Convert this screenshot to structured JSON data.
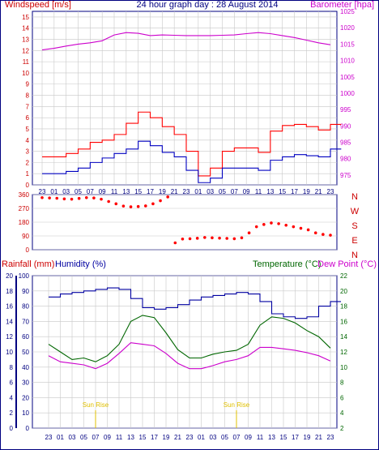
{
  "header": {
    "left_label": "Windspeed [m/s]",
    "title": "24 hour graph day : 28 August 2014",
    "right_label": "Barometer [hpa]"
  },
  "bottom_header": {
    "rain_label": "Rainfall (mm)",
    "humidity_label": "Humidity (%)",
    "temp_label": "Temperature (°C)",
    "dew_label": "Dew Point (°C)"
  },
  "colors": {
    "wind_max": "#ff0000",
    "wind_avg": "#0000c0",
    "barometer": "#cc00cc",
    "direction": "#ff0000",
    "rain": "#cc0000",
    "humidity": "#0000a0",
    "temperature": "#006600",
    "dewpoint": "#cc00cc",
    "sunrise": "#e0c000",
    "axis": "#000080",
    "grid": "#c8c8c8"
  },
  "chart_data": [
    {
      "type": "line",
      "name": "wind-barometer",
      "x_ticks": [
        "23",
        "01",
        "03",
        "05",
        "07",
        "09",
        "11",
        "13",
        "15",
        "17",
        "19",
        "21",
        "23",
        "01",
        "03",
        "05",
        "07",
        "09",
        "11",
        "13",
        "15",
        "17",
        "19",
        "21",
        "23"
      ],
      "left_axis": {
        "label": "Windspeed [m/s]",
        "ylim": [
          0,
          15.5
        ],
        "ticks": [
          0,
          1,
          2,
          3,
          4,
          5,
          6,
          7,
          8,
          9,
          10,
          11,
          12,
          13,
          14,
          15
        ]
      },
      "right_axis": {
        "label": "Barometer [hpa]",
        "ylim": [
          972,
          1025
        ],
        "ticks": [
          975,
          980,
          985,
          990,
          995,
          1000,
          1005,
          1010,
          1015,
          1020,
          1025
        ]
      },
      "series": [
        {
          "name": "Barometer",
          "axis": "right",
          "values": [
            1013.2,
            1013.7,
            1014.4,
            1015,
            1015.4,
            1016,
            1017.8,
            1018.5,
            1018.3,
            1017.6,
            1017.8,
            1017.7,
            1017.6,
            1017.6,
            1017.6,
            1017.7,
            1017.8,
            1018.2,
            1018.5,
            1018.2,
            1017.6,
            1017.0,
            1016.2,
            1015.4,
            1014.8
          ]
        },
        {
          "name": "Wind gust",
          "axis": "left",
          "values": [
            2.5,
            2.5,
            2.8,
            3.2,
            3.8,
            4.0,
            4.5,
            5.5,
            6.5,
            6.0,
            5.2,
            4.5,
            3.0,
            0.8,
            1.5,
            3.0,
            3.3,
            3.3,
            2.9,
            4.8,
            5.3,
            5.4,
            5.2,
            4.9,
            5.4
          ]
        },
        {
          "name": "Wind speed",
          "axis": "left",
          "values": [
            1.0,
            1.0,
            1.2,
            1.5,
            2.0,
            2.4,
            2.8,
            3.2,
            3.9,
            3.5,
            2.9,
            2.5,
            1.3,
            0.2,
            0.6,
            1.5,
            1.5,
            1.5,
            1.3,
            2.2,
            2.5,
            2.7,
            2.6,
            2.5,
            3.2
          ]
        }
      ]
    },
    {
      "type": "scatter",
      "name": "wind-direction",
      "x_ticks": [],
      "left_axis": {
        "ylim": [
          0,
          360
        ],
        "ticks": [
          0,
          90,
          180,
          270,
          360
        ]
      },
      "right_axis": {
        "ticks": [
          "N",
          "W",
          "S",
          "E",
          "N"
        ]
      },
      "series": [
        {
          "name": "Wind direction",
          "values": [
            340,
            338,
            336,
            332,
            330,
            335,
            340,
            338,
            330,
            315,
            300,
            285,
            280,
            282,
            286,
            300,
            320,
            345,
            45,
            70,
            72,
            75,
            80,
            78,
            76,
            74,
            72,
            78,
            110,
            150,
            165,
            175,
            170,
            160,
            150,
            140,
            130,
            110,
            100,
            95
          ]
        }
      ]
    },
    {
      "type": "line",
      "name": "temperature-humidity",
      "x_ticks": [
        "23",
        "01",
        "03",
        "05",
        "07",
        "09",
        "11",
        "13",
        "15",
        "17",
        "19",
        "21",
        "23",
        "01",
        "03",
        "05",
        "07",
        "09",
        "11",
        "13",
        "15",
        "17",
        "19",
        "21",
        "23"
      ],
      "left_axis": {
        "label": "Humidity (%)",
        "ylim": [
          0,
          100
        ],
        "ticks": [
          0,
          10,
          20,
          30,
          40,
          50,
          60,
          70,
          80,
          90,
          100
        ]
      },
      "left_outer_axis": {
        "label": "Rainfall (mm)",
        "ticks": [
          0,
          2,
          4,
          6,
          8,
          10,
          12,
          14,
          16,
          18,
          20
        ]
      },
      "right_axis": {
        "label": "Temperature (°C)",
        "ylim": [
          2,
          22
        ],
        "ticks": [
          2,
          4,
          6,
          8,
          10,
          12,
          14,
          16,
          18,
          20,
          22
        ]
      },
      "annotations": [
        "Sun Rise",
        "Sun Rise"
      ],
      "series": [
        {
          "name": "Humidity",
          "axis": "left",
          "values": [
            86,
            88,
            89,
            90,
            91,
            92,
            91,
            85,
            79,
            78,
            79,
            81,
            84,
            86,
            87,
            88,
            89,
            88,
            83,
            75,
            73,
            72,
            73,
            80,
            83
          ]
        },
        {
          "name": "Temperature",
          "axis": "right",
          "values": [
            13,
            12,
            11,
            11.2,
            10.7,
            11.5,
            13,
            16,
            16.8,
            16.5,
            14.5,
            12.3,
            11.2,
            11.2,
            11.7,
            12.0,
            12.2,
            13.0,
            15.5,
            16.6,
            16.4,
            15.8,
            14.8,
            14.0,
            12.5
          ]
        },
        {
          "name": "Dew Point",
          "axis": "right",
          "values": [
            11.5,
            10.7,
            10.5,
            10.3,
            9.8,
            10.5,
            11.8,
            13.2,
            13.0,
            12.8,
            11.8,
            10.5,
            9.8,
            9.8,
            10.2,
            10.7,
            11.0,
            11.5,
            12.6,
            12.6,
            12.4,
            12.2,
            11.9,
            11.5,
            10.8
          ]
        }
      ]
    }
  ]
}
